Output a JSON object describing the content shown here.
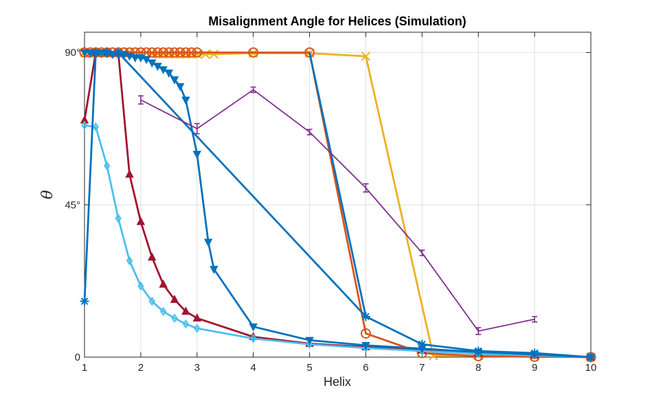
{
  "chart_data": {
    "type": "line",
    "title": "Misalignment Angle for Helices (Simulation)",
    "xlabel": "Helix",
    "ylabel": "θ",
    "xlim": [
      1,
      10
    ],
    "ylim": [
      0,
      96
    ],
    "grid": true,
    "x_ticks": [
      {
        "value": 1,
        "label": "1"
      },
      {
        "value": 2,
        "label": "2"
      },
      {
        "value": 3,
        "label": "3"
      },
      {
        "value": 4,
        "label": "4"
      },
      {
        "value": 5,
        "label": "5"
      },
      {
        "value": 6,
        "label": "6"
      },
      {
        "value": 7,
        "label": "7"
      },
      {
        "value": 8,
        "label": "8"
      },
      {
        "value": 9,
        "label": "9"
      },
      {
        "value": 10,
        "label": "10"
      }
    ],
    "y_ticks": [
      {
        "value": 0,
        "label": "0"
      },
      {
        "value": 45,
        "label": "45°"
      },
      {
        "value": 90,
        "label": "90°"
      }
    ],
    "series": [
      {
        "color": "#EDB120",
        "marker": "x",
        "errorbars": false,
        "x": [
          1.0,
          1.1,
          1.2,
          1.3,
          1.4,
          1.5,
          1.6,
          1.7,
          1.8,
          1.9,
          2.0,
          2.1,
          2.2,
          2.3,
          2.4,
          2.5,
          2.6,
          2.7,
          2.8,
          2.9,
          3.0,
          3.15,
          3.3,
          4.0,
          5.0,
          6.0,
          7.2,
          8.0,
          9.0,
          10.0
        ],
        "y": [
          90,
          90,
          90,
          90,
          90,
          90,
          90,
          90,
          90,
          90,
          90,
          90,
          89.5,
          89.5,
          89.5,
          89.5,
          89.5,
          89.5,
          89.5,
          89.5,
          89.5,
          89.5,
          89.5,
          89.8,
          89.8,
          88.9,
          0.4,
          0.4,
          0.2,
          0
        ]
      },
      {
        "color": "#D95319",
        "marker": "o",
        "errorbars": false,
        "x": [
          1.0,
          1.1,
          1.2,
          1.3,
          1.4,
          1.5,
          1.6,
          1.7,
          1.8,
          1.9,
          2.0,
          2.1,
          2.2,
          2.3,
          2.4,
          2.5,
          2.6,
          2.7,
          2.8,
          2.9,
          3.0,
          4.0,
          5.0,
          6.0,
          7.0,
          8.0,
          9.0,
          10.0
        ],
        "y": [
          90,
          90,
          90,
          90,
          90,
          90,
          90,
          90,
          90,
          90,
          90,
          90,
          90,
          90,
          90,
          90,
          90,
          90,
          90,
          90,
          90,
          90,
          90,
          7.0,
          1.2,
          0.3,
          0.1,
          0
        ]
      },
      {
        "color": "#A2142F",
        "marker": "triangle-up",
        "errorbars": false,
        "x": [
          1.0,
          1.2,
          1.4,
          1.6,
          1.8,
          2.0,
          2.2,
          2.4,
          2.6,
          2.8,
          3.0,
          4.0,
          5.0,
          6.0,
          7.0,
          8.0,
          9.0,
          10.0
        ],
        "y": [
          70,
          90,
          90,
          90,
          54,
          40,
          29.5,
          21.5,
          17,
          13.5,
          11.5,
          6,
          4,
          3,
          2,
          1.2,
          0.6,
          0
        ]
      },
      {
        "color": "#4DBEEE",
        "marker": "diamond",
        "errorbars": false,
        "x": [
          1.0,
          1.2,
          1.4,
          1.6,
          1.8,
          2.0,
          2.2,
          2.4,
          2.6,
          2.8,
          3.0,
          4.0,
          5.0,
          6.0,
          7.0,
          8.0,
          9.0,
          10.0
        ],
        "y": [
          68.5,
          68,
          56.5,
          41,
          28.5,
          21,
          16.5,
          13.5,
          11.5,
          9.8,
          8.5,
          5.5,
          3.8,
          2.7,
          1.8,
          1.0,
          0.5,
          0
        ]
      },
      {
        "color": "#0072BD",
        "marker": "triangle-down",
        "errorbars": false,
        "x": [
          1.0,
          1.1,
          1.2,
          1.3,
          1.4,
          1.5,
          1.6,
          1.7,
          1.8,
          1.9,
          2.0,
          2.1,
          2.2,
          2.3,
          2.4,
          2.5,
          2.6,
          2.7,
          2.8,
          3.0,
          3.2,
          3.3,
          4.0,
          5.0,
          6.0,
          7.0,
          8.0,
          9.0,
          10.0
        ],
        "y": [
          90,
          90,
          90,
          90,
          90,
          89.5,
          89.5,
          89.5,
          89,
          88.5,
          88.5,
          88,
          87,
          86,
          85,
          84,
          82,
          80,
          76,
          60,
          34,
          26,
          9,
          5,
          3.5,
          2.5,
          1.5,
          0.8,
          0
        ]
      },
      {
        "color": "#0072BD",
        "marker": "asterisk",
        "errorbars": false,
        "x": [
          1.0,
          1.2,
          1.4,
          1.6,
          6.0,
          7.0,
          8.0,
          9.0,
          10.0
        ],
        "y": [
          16.5,
          90,
          90,
          90,
          12,
          3.8,
          1.8,
          1.2,
          0
        ]
      },
      {
        "color": "#0072BD",
        "marker": "none",
        "errorbars": false,
        "x": [
          5.0,
          6.0
        ],
        "y": [
          90,
          12
        ]
      },
      {
        "color": "#7E2F8E",
        "marker": "none",
        "errorbars": true,
        "x": [
          2.0,
          3.0,
          4.0,
          5.0,
          6.0,
          7.0,
          8.0,
          9.0
        ],
        "y": [
          76,
          67.5,
          79,
          66.5,
          50,
          30.8,
          7.7,
          11.2
        ],
        "err": [
          1.2,
          1.5,
          0.8,
          0.8,
          1.2,
          0.8,
          1.0,
          0.8
        ]
      }
    ]
  }
}
